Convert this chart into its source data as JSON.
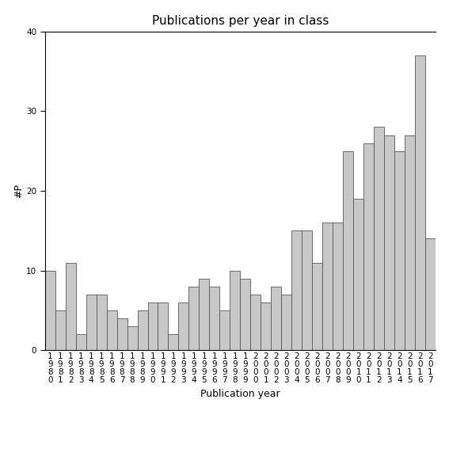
{
  "title": "Publications per year in class",
  "xlabel": "Publication year",
  "ylabel": "#P",
  "years": [
    1980,
    1981,
    1982,
    1983,
    1984,
    1985,
    1986,
    1987,
    1988,
    1989,
    1990,
    1991,
    1992,
    1993,
    1994,
    1995,
    1996,
    1997,
    1998,
    1999,
    2000,
    2001,
    2002,
    2003,
    2004,
    2005,
    2006,
    2007,
    2008,
    2009,
    2010,
    2011,
    2012,
    2013,
    2014,
    2015,
    2016,
    2017
  ],
  "values": [
    10,
    5,
    11,
    2,
    7,
    7,
    5,
    4,
    3,
    5,
    6,
    6,
    2,
    6,
    8,
    9,
    8,
    5,
    10,
    9,
    7,
    6,
    8,
    7,
    15,
    15,
    11,
    16,
    16,
    25,
    19,
    26,
    28,
    27,
    25,
    27,
    37,
    14
  ],
  "bar_color": "#c8c8c8",
  "bar_edgecolor": "#555555",
  "ylim": [
    0,
    40
  ],
  "yticks": [
    0,
    10,
    20,
    30,
    40
  ],
  "background_color": "#ffffff",
  "title_fontsize": 11,
  "axis_label_fontsize": 9,
  "tick_label_fontsize": 7.5
}
